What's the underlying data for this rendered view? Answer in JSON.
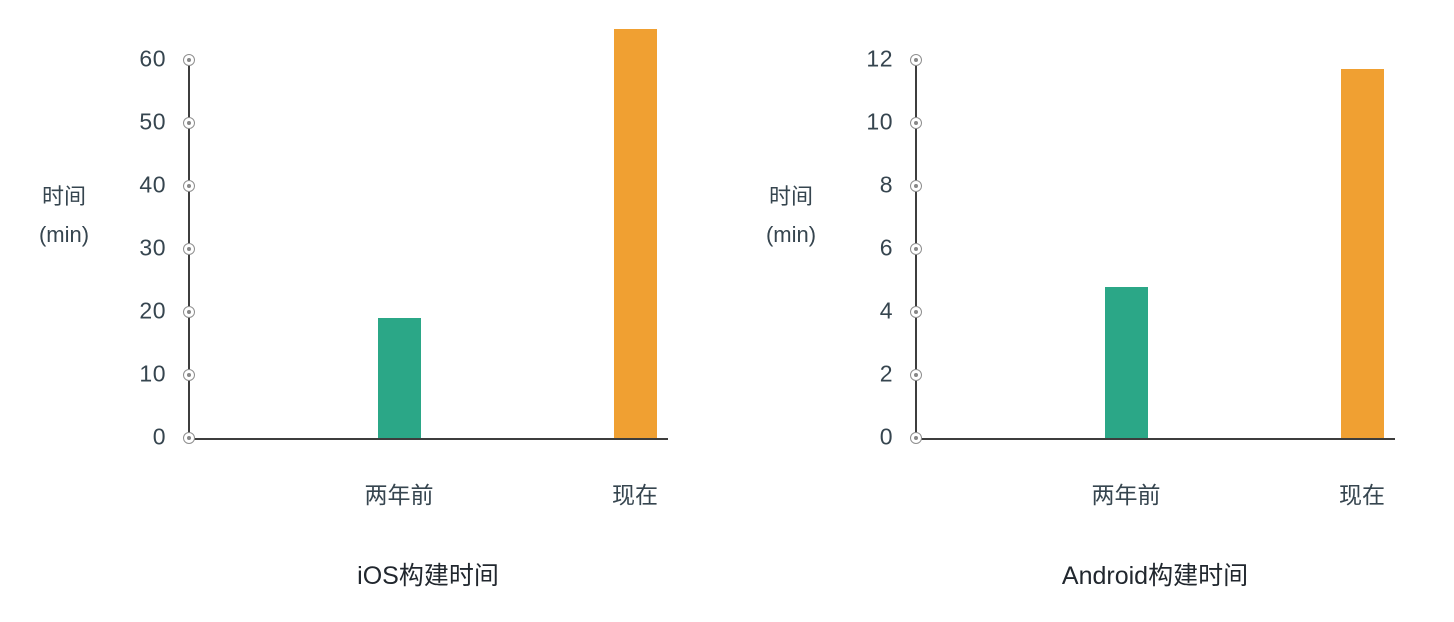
{
  "page": {
    "background": "#ffffff",
    "text_color": "#36454f",
    "axis_color": "#3d3d3d",
    "tick_marker_color": "#8f8f8f"
  },
  "chart_data": [
    {
      "type": "bar",
      "title": "iOS构建时间",
      "ylabel_lines": [
        "时间",
        "(min)"
      ],
      "xlabel": "",
      "categories": [
        "两年前",
        "现在"
      ],
      "values": [
        19,
        65
      ],
      "bar_colors": [
        "#2BA787",
        "#F0A032"
      ],
      "yticks": [
        0,
        10,
        20,
        30,
        40,
        50,
        60
      ],
      "ymax_tick": 60,
      "ylim": [
        0,
        68
      ],
      "grid": false,
      "legend": "none"
    },
    {
      "type": "bar",
      "title": "Android构建时间",
      "ylabel_lines": [
        "时间",
        "(min)"
      ],
      "xlabel": "",
      "categories": [
        "两年前",
        "现在"
      ],
      "values": [
        4.8,
        11.7
      ],
      "bar_colors": [
        "#2BA787",
        "#F0A032"
      ],
      "yticks": [
        0,
        2,
        4,
        6,
        8,
        10,
        12
      ],
      "ymax_tick": 12,
      "ylim": [
        0,
        12.6
      ],
      "grid": false,
      "legend": "none"
    }
  ]
}
